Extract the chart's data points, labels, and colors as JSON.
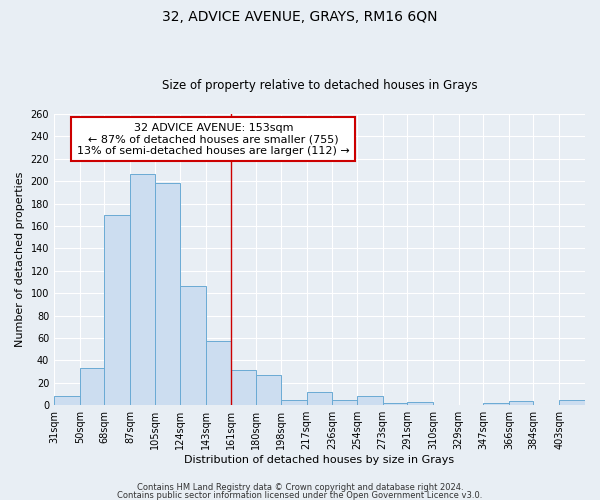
{
  "title": "32, ADVICE AVENUE, GRAYS, RM16 6QN",
  "subtitle": "Size of property relative to detached houses in Grays",
  "xlabel": "Distribution of detached houses by size in Grays",
  "ylabel": "Number of detached properties",
  "bar_labels": [
    "31sqm",
    "50sqm",
    "68sqm",
    "87sqm",
    "105sqm",
    "124sqm",
    "143sqm",
    "161sqm",
    "180sqm",
    "198sqm",
    "217sqm",
    "236sqm",
    "254sqm",
    "273sqm",
    "291sqm",
    "310sqm",
    "329sqm",
    "347sqm",
    "366sqm",
    "384sqm",
    "403sqm"
  ],
  "bar_values": [
    8,
    33,
    170,
    206,
    198,
    106,
    57,
    31,
    27,
    5,
    12,
    5,
    8,
    2,
    3,
    0,
    0,
    2,
    4,
    0,
    5
  ],
  "bar_color": "#ccddf0",
  "bar_edge_color": "#6aaad4",
  "bin_edges": [
    31,
    50,
    68,
    87,
    105,
    124,
    143,
    161,
    180,
    198,
    217,
    236,
    254,
    273,
    291,
    310,
    329,
    347,
    366,
    384,
    403,
    422
  ],
  "annotation_box_text": "32 ADVICE AVENUE: 153sqm\n← 87% of detached houses are smaller (755)\n13% of semi-detached houses are larger (112) →",
  "annotation_box_color": "#ffffff",
  "annotation_box_edge_color": "#cc0000",
  "vline_color": "#cc0000",
  "ylim": [
    0,
    260
  ],
  "yticks": [
    0,
    20,
    40,
    60,
    80,
    100,
    120,
    140,
    160,
    180,
    200,
    220,
    240,
    260
  ],
  "footer1": "Contains HM Land Registry data © Crown copyright and database right 2024.",
  "footer2": "Contains public sector information licensed under the Open Government Licence v3.0.",
  "bg_color": "#e8eef4",
  "plot_bg_color": "#e8eef4",
  "grid_color": "#ffffff",
  "title_fontsize": 10,
  "subtitle_fontsize": 8.5,
  "axis_label_fontsize": 8,
  "tick_fontsize": 7,
  "annotation_fontsize": 8,
  "footer_fontsize": 6
}
